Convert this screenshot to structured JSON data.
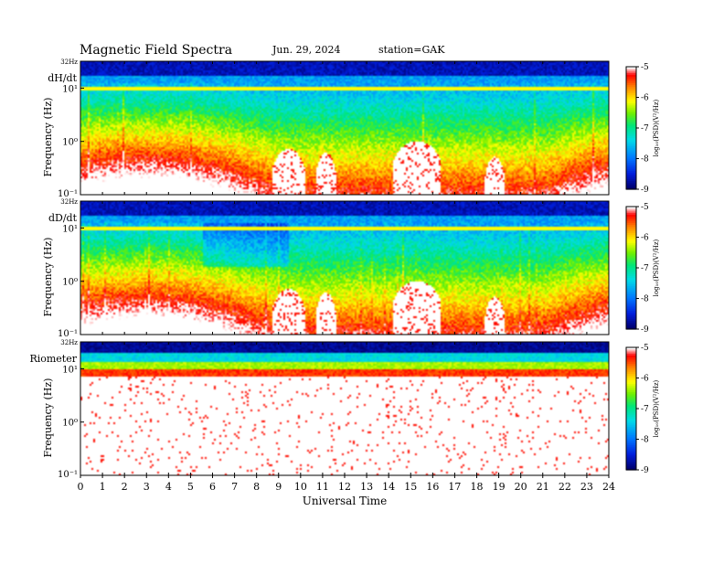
{
  "header": {
    "title": "Magnetic  Field  Spectra",
    "date": "Jun. 29, 2024",
    "station": "station=GAK"
  },
  "colorbar": {
    "label": "log₁₀(PSD)(V²/Hz)",
    "ticks": [
      "-5",
      "-6",
      "-7",
      "-8",
      "-9"
    ],
    "colors": [
      "#000090",
      "#0040ff",
      "#00c8ff",
      "#00ff80",
      "#90ff00",
      "#ffff00",
      "#ff8000",
      "#ff0000",
      "#ffffff"
    ]
  },
  "x_axis": {
    "label": "Universal Time",
    "ticks": [
      "0",
      "1",
      "2",
      "3",
      "4",
      "5",
      "6",
      "7",
      "8",
      "9",
      "10",
      "11",
      "12",
      "13",
      "14",
      "15",
      "16",
      "17",
      "18",
      "19",
      "20",
      "21",
      "22",
      "23",
      "24"
    ]
  },
  "chart_data": [
    {
      "type": "heatmap",
      "panel_label": "dH/dt",
      "ylabel": "Frequency (Hz)",
      "y_ticks": [
        "32Hz",
        "10¹",
        "10⁰",
        "10⁻¹"
      ],
      "y_scale": "log",
      "ylim_hz": [
        0.1,
        32
      ],
      "xlim_ut": [
        0,
        24
      ],
      "clim_log10_psd": [
        -9,
        -5
      ],
      "gaps": [
        {
          "start_ut": 8.7,
          "end_ut": 10.2,
          "top_hz": 0.7
        },
        {
          "start_ut": 10.7,
          "end_ut": 11.6,
          "top_hz": 0.6
        },
        {
          "start_ut": 14.2,
          "end_ut": 16.4,
          "top_hz": 1.0
        },
        {
          "start_ut": 18.4,
          "end_ut": 19.3,
          "top_hz": 0.5
        }
      ]
    },
    {
      "type": "heatmap",
      "panel_label": "dD/dt",
      "ylabel": "Frequency (Hz)",
      "y_ticks": [
        "32Hz",
        "10¹",
        "10⁰",
        "10⁻¹"
      ],
      "y_scale": "log",
      "ylim_hz": [
        0.1,
        32
      ],
      "xlim_ut": [
        0,
        24
      ],
      "clim_log10_psd": [
        -9,
        -5
      ],
      "gaps": [
        {
          "start_ut": 8.7,
          "end_ut": 10.2,
          "top_hz": 0.7
        },
        {
          "start_ut": 10.7,
          "end_ut": 11.6,
          "top_hz": 0.6
        },
        {
          "start_ut": 14.2,
          "end_ut": 16.4,
          "top_hz": 1.0
        },
        {
          "start_ut": 18.4,
          "end_ut": 19.3,
          "top_hz": 0.5
        }
      ]
    },
    {
      "type": "heatmap",
      "panel_label": "Riometer",
      "ylabel": "Frequency (Hz)",
      "y_ticks": [
        "32Hz",
        "10¹",
        "10⁰",
        "10⁻¹"
      ],
      "y_scale": "log",
      "ylim_hz": [
        0.1,
        32
      ],
      "xlim_ut": [
        0,
        24
      ],
      "clim_log10_psd": [
        -9,
        -5
      ],
      "gaps": []
    }
  ]
}
